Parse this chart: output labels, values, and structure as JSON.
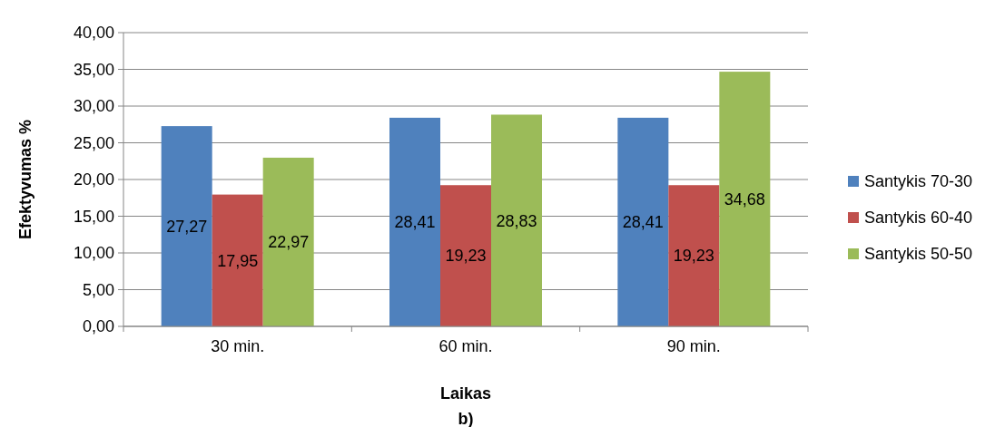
{
  "chart_data": {
    "type": "bar",
    "xlabel": "Laikas",
    "ylabel": "Efektyvumas %",
    "annotations": [
      "b)"
    ],
    "categories": [
      "30 min.",
      "60 min.",
      "90 min."
    ],
    "series": [
      {
        "name": "Santykis 70-30",
        "color": "#4f81bd",
        "values": [
          27.27,
          28.41,
          28.41
        ],
        "value_labels": [
          "27,27",
          "28,41",
          "28,41"
        ]
      },
      {
        "name": "Santykis 60-40",
        "color": "#c0504d",
        "values": [
          17.95,
          19.23,
          19.23
        ],
        "value_labels": [
          "17,95",
          "19,23",
          "19,23"
        ]
      },
      {
        "name": "Santykis 50-50",
        "color": "#9bbb59",
        "values": [
          22.97,
          28.83,
          34.68
        ],
        "value_labels": [
          "22,97",
          "28,83",
          "34,68"
        ]
      }
    ],
    "ylim": [
      0,
      40
    ],
    "yticks": [
      {
        "value": 0,
        "label": "0,00"
      },
      {
        "value": 5,
        "label": "5,00"
      },
      {
        "value": 10,
        "label": "10,00"
      },
      {
        "value": 15,
        "label": "15,00"
      },
      {
        "value": 20,
        "label": "20,00"
      },
      {
        "value": 25,
        "label": "25,00"
      },
      {
        "value": 30,
        "label": "30,00"
      },
      {
        "value": 35,
        "label": "35,00"
      },
      {
        "value": 40,
        "label": "40,00"
      }
    ],
    "grid": "y",
    "legend": "right"
  }
}
